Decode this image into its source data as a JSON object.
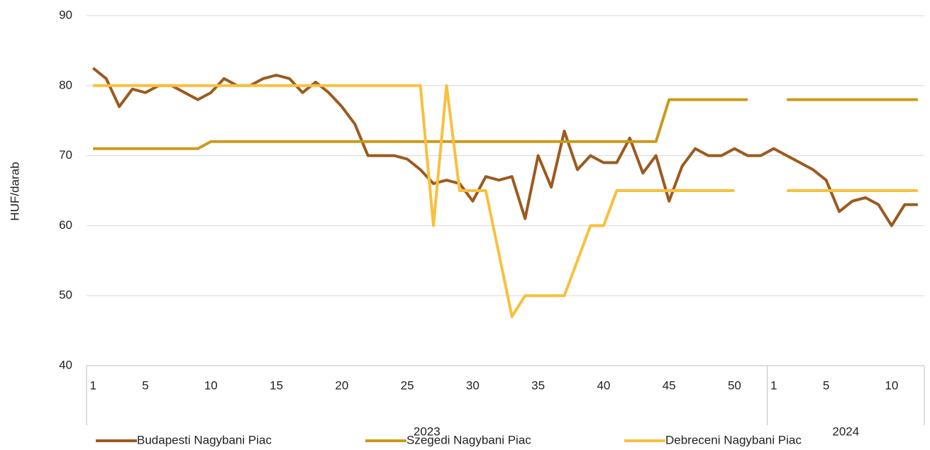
{
  "chart_data": {
    "type": "line",
    "y_label": "HUF/darab",
    "categories": [
      "1",
      null,
      null,
      null,
      "5",
      null,
      null,
      null,
      null,
      "10",
      null,
      null,
      null,
      null,
      "15",
      null,
      null,
      null,
      null,
      "20",
      null,
      null,
      null,
      null,
      "25",
      null,
      null,
      null,
      null,
      "30",
      null,
      null,
      null,
      null,
      "35",
      null,
      null,
      null,
      null,
      "40",
      null,
      null,
      null,
      null,
      "45",
      null,
      null,
      null,
      null,
      "50",
      null,
      null,
      "1",
      null,
      null,
      null,
      "5",
      null,
      null,
      null,
      null,
      "10",
      null,
      null
    ],
    "groups": [
      "2023",
      "2024"
    ],
    "series": [
      {
        "name": "Budapesti Nagybani Piac",
        "color": "#9c5a1e",
        "values": [
          82.5,
          81,
          77,
          79.5,
          79,
          80,
          80,
          79,
          78,
          79,
          81,
          80,
          80,
          81,
          81.5,
          81,
          79,
          80.5,
          79,
          77,
          74.5,
          70,
          70,
          70,
          69.5,
          68,
          66,
          66.5,
          66,
          63.5,
          67,
          66.5,
          67,
          61,
          70,
          65.5,
          73.5,
          68,
          70,
          69,
          69,
          72.5,
          67.5,
          70,
          63.5,
          68.5,
          71,
          70,
          70,
          71,
          70,
          70,
          71,
          70,
          69,
          68,
          66.5,
          62,
          63.5,
          64,
          63,
          60,
          63,
          63
        ]
      },
      {
        "name": "Szegedi Nagybani Piac",
        "color": "#c99a1c",
        "values": [
          71,
          71,
          71,
          71,
          71,
          71,
          71,
          71,
          71,
          72,
          72,
          72,
          72,
          72,
          72,
          72,
          72,
          72,
          72,
          72,
          72,
          72,
          72,
          72,
          72,
          72,
          72,
          72,
          72,
          72,
          72,
          72,
          72,
          72,
          72,
          72,
          72,
          72,
          72,
          72,
          72,
          72,
          72,
          72,
          78,
          78,
          78,
          78,
          78,
          78,
          78,
          null,
          null,
          78,
          78,
          78,
          78,
          78,
          78,
          78,
          78,
          78,
          78,
          78
        ]
      },
      {
        "name": "Debreceni Nagybani Piac",
        "color": "#f8c03e",
        "values": [
          80,
          80,
          80,
          80,
          80,
          80,
          80,
          80,
          80,
          80,
          80,
          80,
          80,
          80,
          80,
          80,
          80,
          80,
          80,
          80,
          80,
          80,
          80,
          80,
          80,
          80,
          60,
          80,
          65,
          65,
          65,
          56,
          47,
          50,
          50,
          50,
          50,
          55,
          60,
          60,
          65,
          65,
          65,
          65,
          65,
          65,
          65,
          65,
          65,
          65,
          null,
          null,
          null,
          65,
          65,
          65,
          65,
          65,
          65,
          65,
          65,
          65,
          65,
          65
        ]
      }
    ],
    "ylim": [
      40,
      90
    ],
    "yticks": [
      40,
      50,
      60,
      70,
      80,
      90
    ],
    "grid": true
  }
}
